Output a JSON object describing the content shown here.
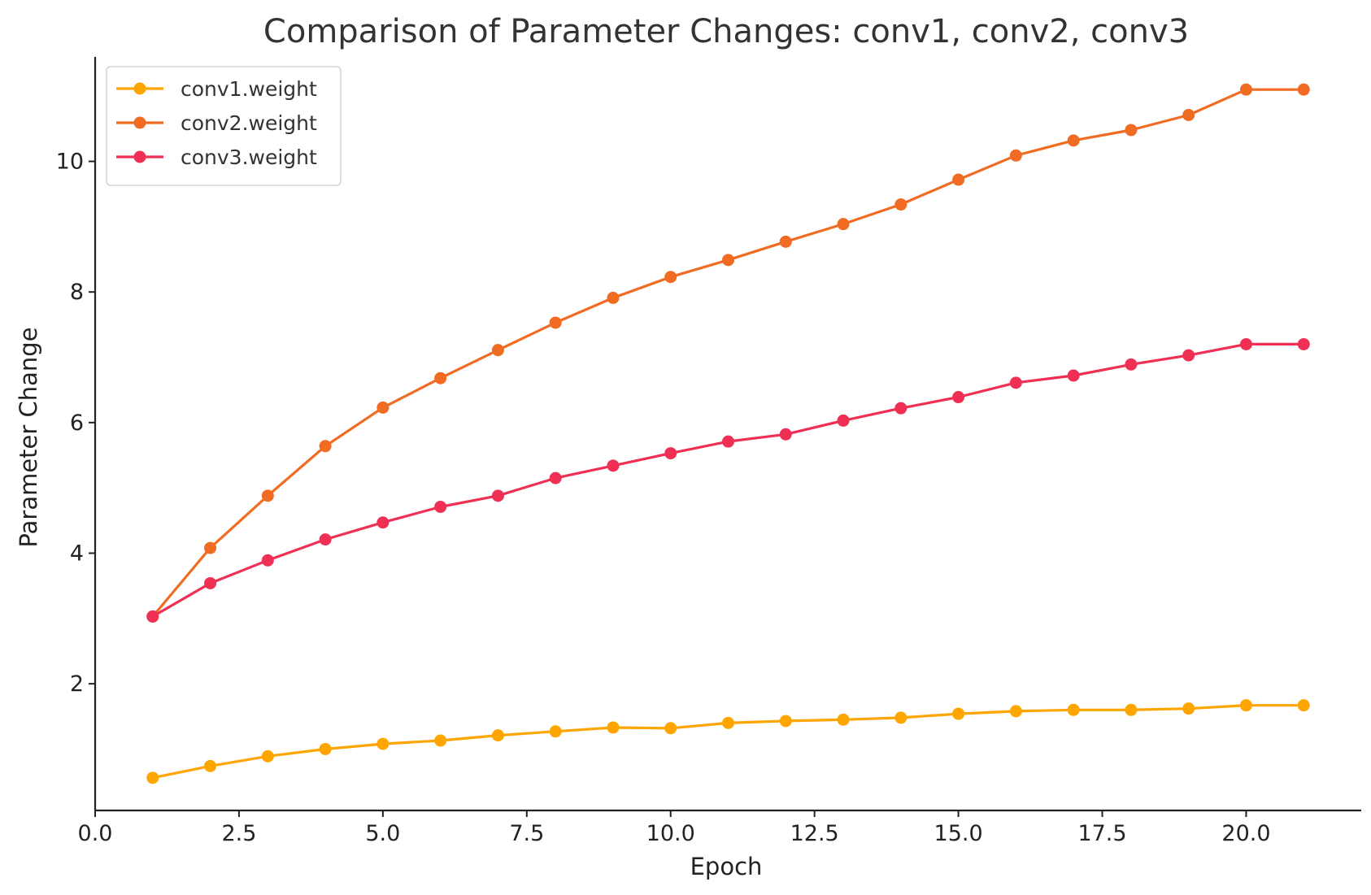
{
  "chart_data": {
    "type": "line",
    "title": "Comparison of Parameter Changes: conv1, conv2, conv3",
    "xlabel": "Epoch",
    "ylabel": "Parameter Change",
    "xlim": [
      0,
      22
    ],
    "ylim": [
      0.06,
      11.6
    ],
    "xticks": [
      0,
      2.5,
      5,
      7.5,
      10,
      12.5,
      15,
      17.5,
      20
    ],
    "xtick_labels": [
      "0.0",
      "2.5",
      "5.0",
      "7.5",
      "10.0",
      "12.5",
      "15.0",
      "17.5",
      "20.0"
    ],
    "yticks": [
      2,
      4,
      6,
      8,
      10
    ],
    "ytick_labels": [
      "2",
      "4",
      "6",
      "8",
      "10"
    ],
    "grid": false,
    "legend_position": "top-left",
    "x": [
      1,
      2,
      3,
      4,
      5,
      6,
      7,
      8,
      9,
      10,
      11,
      12,
      13,
      14,
      15,
      16,
      17,
      18,
      19,
      20,
      21
    ],
    "series": [
      {
        "name": "conv1.weight",
        "color": "#ffa500",
        "values": [
          0.56,
          0.74,
          0.89,
          1.0,
          1.08,
          1.13,
          1.21,
          1.27,
          1.33,
          1.32,
          1.4,
          1.43,
          1.45,
          1.48,
          1.54,
          1.58,
          1.6,
          1.6,
          1.62,
          1.67,
          1.67
        ]
      },
      {
        "name": "conv2.weight",
        "color": "#f06c23",
        "values": [
          3.03,
          4.08,
          4.88,
          5.64,
          6.23,
          6.68,
          7.11,
          7.53,
          7.91,
          8.23,
          8.49,
          8.77,
          9.04,
          9.34,
          9.72,
          10.09,
          10.32,
          10.48,
          10.71,
          11.1,
          11.1
        ]
      },
      {
        "name": "conv3.weight",
        "color": "#ef3054",
        "values": [
          3.03,
          3.54,
          3.89,
          4.21,
          4.47,
          4.71,
          4.88,
          5.15,
          5.34,
          5.53,
          5.71,
          5.82,
          6.03,
          6.22,
          6.39,
          6.61,
          6.72,
          6.89,
          7.03,
          7.2,
          7.2
        ]
      }
    ]
  }
}
